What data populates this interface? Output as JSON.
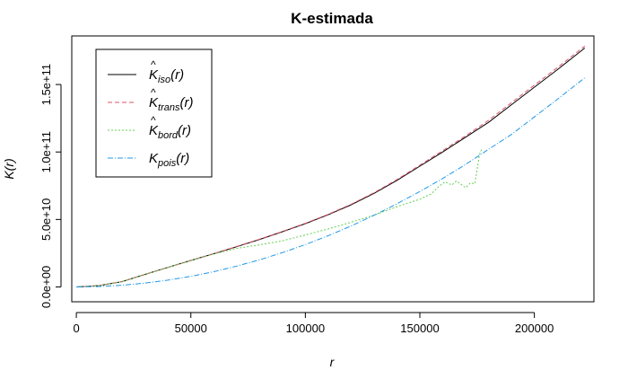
{
  "chart_data": {
    "type": "line",
    "title": "K-estimada",
    "xlabel": "r",
    "ylabel": "K(r)",
    "xlim": [
      -2000,
      226000
    ],
    "ylim": [
      -11000000000.0,
      186000000000.0
    ],
    "x_ticks": [
      0,
      50000,
      100000,
      150000,
      200000
    ],
    "x_tick_labels": [
      "0",
      "50000",
      "100000",
      "150000",
      "200000"
    ],
    "y_ticks": [
      0,
      50000000000.0,
      100000000000.0,
      150000000000.0
    ],
    "y_tick_labels": [
      "0.0e+00",
      "5.0e+10",
      "1.0e+11",
      "1.5e+11"
    ],
    "grid": false,
    "legend_position": "top-left",
    "series": [
      {
        "name": "iso",
        "legend_base": "K",
        "legend_sub": "iso",
        "legend_hat": true,
        "color": "#000000",
        "dash": "none",
        "x": [
          0,
          10000,
          20000,
          30000,
          40000,
          50000,
          60000,
          70000,
          80000,
          90000,
          100000,
          110000,
          120000,
          130000,
          140000,
          150000,
          160000,
          170000,
          180000,
          190000,
          200000,
          210000,
          222000
        ],
        "y": [
          0,
          1000000000.0,
          4000000000.0,
          9300000000.0,
          14500000000.0,
          19600000000.0,
          24600000000.0,
          29800000000.0,
          35200000000.0,
          40900000000.0,
          46900000000.0,
          53500000000.0,
          60900000000.0,
          69300000000.0,
          79000000000.0,
          89500000000.0,
          100000000000.0,
          111000000000.0,
          122000000000.0,
          135000000000.0,
          148000000000.0,
          161000000000.0,
          177000000000.0
        ]
      },
      {
        "name": "trans",
        "legend_base": "K",
        "legend_sub": "trans",
        "legend_hat": true,
        "color": "#DF536B",
        "dash": "5,3",
        "x": [
          0,
          10000,
          20000,
          30000,
          40000,
          50000,
          60000,
          70000,
          80000,
          90000,
          100000,
          110000,
          120000,
          130000,
          140000,
          150000,
          160000,
          170000,
          180000,
          190000,
          200000,
          210000,
          222000
        ],
        "y": [
          0,
          1000000000.0,
          4000000000.0,
          9300000000.0,
          14500000000.0,
          19700000000.0,
          24700000000.0,
          30000000000.0,
          35400000000.0,
          41100000000.0,
          47200000000.0,
          53800000000.0,
          61300000000.0,
          69800000000.0,
          79600000000.0,
          90200000000.0,
          101000000000.0,
          112000000000.0,
          123500000000.0,
          136500000000.0,
          149500000000.0,
          162500000000.0,
          178500000000.0
        ]
      },
      {
        "name": "bord",
        "legend_base": "K",
        "legend_sub": "bord",
        "legend_hat": true,
        "color": "#61D04F",
        "dash": "2,2",
        "x": [
          0,
          10000,
          20000,
          30000,
          40000,
          50000,
          60000,
          70000,
          80000,
          90000,
          100000,
          110000,
          120000,
          130000,
          140000,
          150000,
          155000,
          158000,
          161000,
          164000,
          166000,
          168000,
          170000,
          172000,
          174000,
          176000,
          177000
        ],
        "y": [
          0,
          1000000000.0,
          4000000000.0,
          9300000000.0,
          14500000000.0,
          19600000000.0,
          24500000000.0,
          28500000000.0,
          31200000000.0,
          34200000000.0,
          38500000000.0,
          43000000000.0,
          48000000000.0,
          53200000000.0,
          59500000000.0,
          65000000000.0,
          69000000000.0,
          74000000000.0,
          78000000000.0,
          75500000000.0,
          78500000000.0,
          76000000000.0,
          73500000000.0,
          77000000000.0,
          76500000000.0,
          98000000000.0,
          102000000000.0
        ]
      },
      {
        "name": "pois",
        "legend_base": "K",
        "legend_sub": "pois",
        "legend_hat": false,
        "color": "#2297E6",
        "dash": "6,2,1,2",
        "x": [
          0,
          10000,
          20000,
          30000,
          40000,
          50000,
          60000,
          70000,
          80000,
          90000,
          100000,
          110000,
          120000,
          130000,
          140000,
          150000,
          160000,
          170000,
          180000,
          190000,
          200000,
          210000,
          222000
        ],
        "y": [
          0,
          314000000.0,
          1260000000.0,
          2830000000.0,
          5030000000.0,
          7850000000.0,
          11300000000.0,
          15400000000.0,
          20100000000.0,
          25400000000.0,
          31400000000.0,
          38000000000.0,
          45200000000.0,
          53100000000.0,
          61600000000.0,
          70700000000.0,
          80400000000.0,
          90800000000.0,
          102000000000.0,
          113000000000.0,
          126000000000.0,
          139000000000.0,
          155000000000.0
        ]
      }
    ]
  }
}
